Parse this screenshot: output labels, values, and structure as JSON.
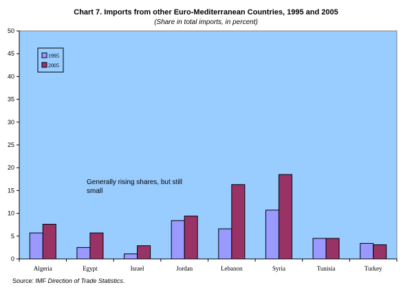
{
  "chart_data": {
    "type": "bar",
    "title": "Chart 7. Imports from other Euro-Mediterranean Countries, 1995 and 2005",
    "subtitle": "(Share in total imports, in percent)",
    "categories": [
      "Algeria",
      "Egypt",
      "Israel",
      "Jordan",
      "Lebanon",
      "Syria",
      "Tunisia",
      "Turkey"
    ],
    "series": [
      {
        "name": "1995",
        "values": [
          5.7,
          2.5,
          1.1,
          8.4,
          6.6,
          10.7,
          4.5,
          3.4
        ],
        "color": "#9999ff"
      },
      {
        "name": "2005",
        "values": [
          7.6,
          5.7,
          2.9,
          9.4,
          16.3,
          18.5,
          4.5,
          3.1
        ],
        "color": "#993366"
      }
    ],
    "ylim": [
      0,
      50
    ],
    "yticks": [
      0,
      5,
      10,
      15,
      20,
      25,
      30,
      35,
      40,
      45,
      50
    ],
    "grid": false,
    "legend_position": "top-left",
    "plot_background": "#99ccff",
    "annotation": "Generally rising shares, but still small",
    "source_prefix": "Source: IMF ",
    "source_italic": "Direction of Trade Statistics",
    "source_suffix": "."
  }
}
